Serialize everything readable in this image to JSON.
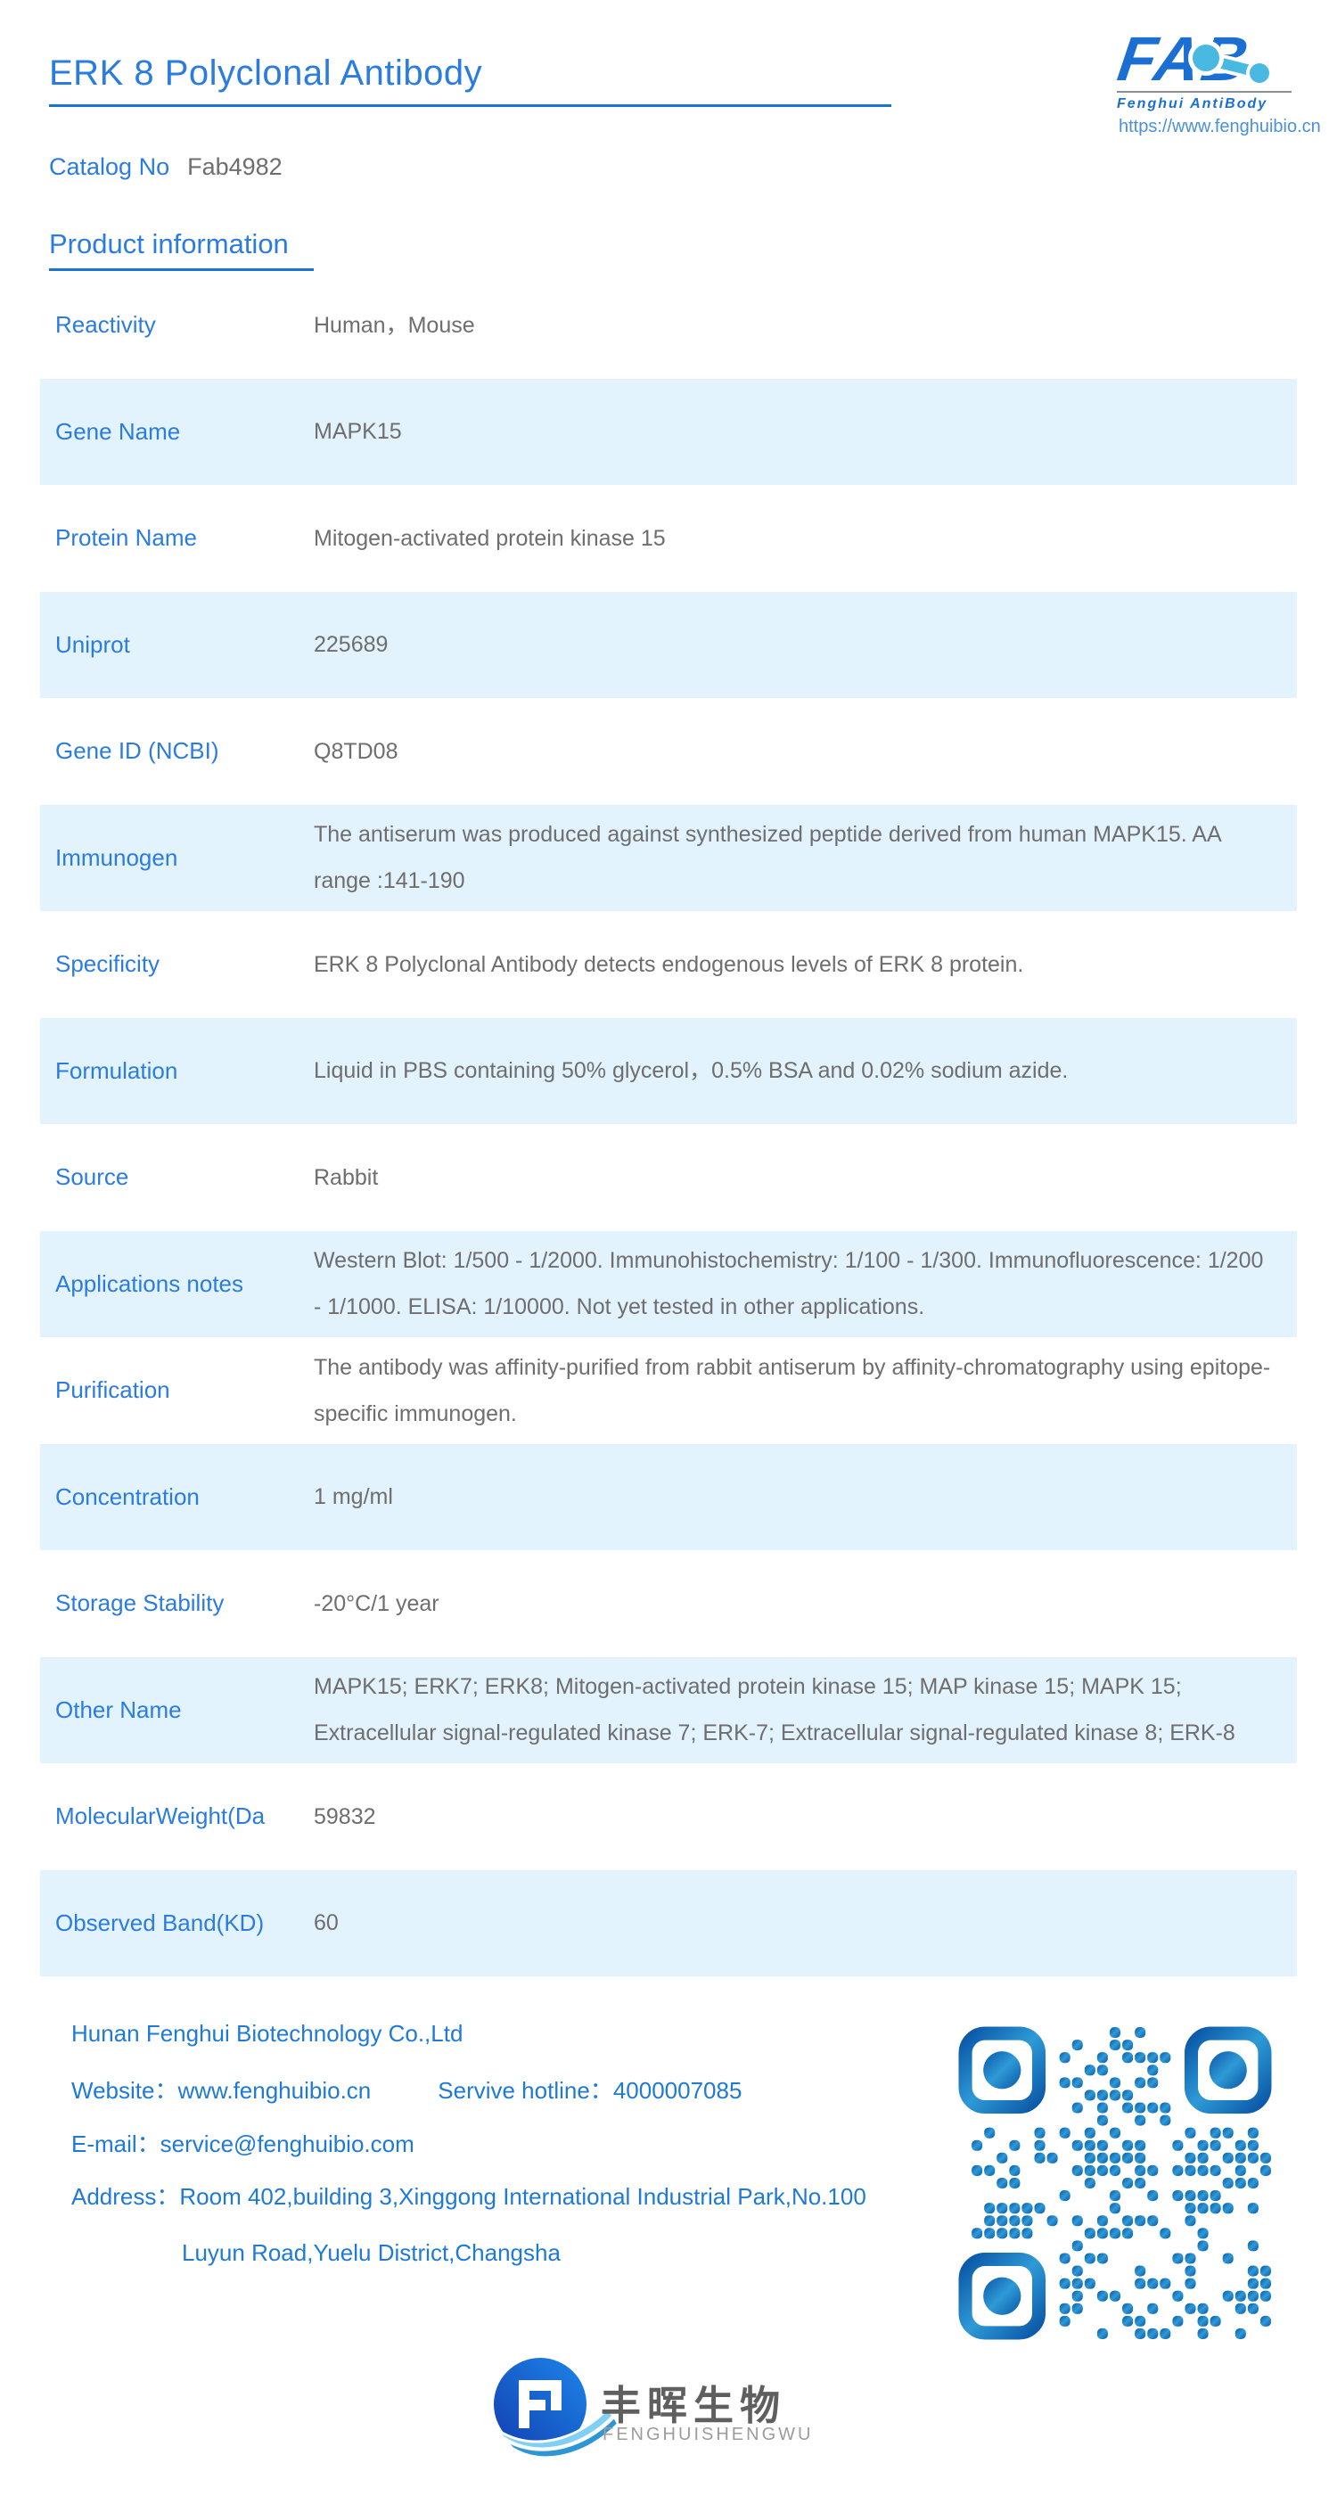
{
  "header": {
    "title": "ERK 8 Polyclonal Antibody",
    "catalog_label": "Catalog No",
    "catalog_value": "Fab4982",
    "section_title": "Product information"
  },
  "logo": {
    "text": "FAB",
    "subtitle": "Fenghui AntiBody",
    "url": "https://www.fenghuibio.cn"
  },
  "table": {
    "rows": [
      {
        "label": "Reactivity",
        "value": "Human，Mouse"
      },
      {
        "label": "Gene Name",
        "value": "MAPK15"
      },
      {
        "label": "Protein Name",
        "value": "Mitogen-activated protein kinase 15"
      },
      {
        "label": "Uniprot",
        "value": "225689"
      },
      {
        "label": "Gene ID (NCBI)",
        "value": "Q8TD08"
      },
      {
        "label": "Immunogen",
        "value": "The antiserum was produced against synthesized peptide derived from human MAPK15. AA range :141-190"
      },
      {
        "label": "Specificity",
        "value": "ERK 8 Polyclonal Antibody detects endogenous levels of ERK 8 protein."
      },
      {
        "label": "Formulation",
        "value": "Liquid in PBS containing 50% glycerol，0.5% BSA and 0.02% sodium azide."
      },
      {
        "label": "Source",
        "value": "Rabbit"
      },
      {
        "label": "Applications notes",
        "value": "Western Blot: 1/500 - 1/2000. Immunohistochemistry: 1/100 - 1/300. Immunofluorescence: 1/200 - 1/1000. ELISA: 1/10000. Not yet tested in other applications."
      },
      {
        "label": "Purification",
        "value": "The antibody was affinity-purified from rabbit antiserum by affinity-chromatography using epitope-specific immunogen."
      },
      {
        "label": "Concentration",
        "value": "1 mg/ml"
      },
      {
        "label": "Storage Stability",
        "value": "-20°C/1 year"
      },
      {
        "label": "Other Name",
        "value": "MAPK15; ERK7; ERK8; Mitogen-activated protein kinase 15; MAP kinase 15; MAPK 15; Extracellular signal-regulated kinase 7; ERK-7; Extracellular signal-regulated kinase 8; ERK-8"
      },
      {
        "label": "MolecularWeight(Da",
        "value": "59832"
      },
      {
        "label": "Observed Band(KD)",
        "value": "60"
      }
    ]
  },
  "footer": {
    "company": "Hunan Fenghui Biotechnology Co.,Ltd",
    "website_label": "Website：",
    "website": "www.fenghuibio.cn",
    "hotline_label": "Servive hotline：",
    "hotline": "4000007085",
    "email_label": "E-mail：",
    "email": "service@fenghuibio.com",
    "address_label": "Address：",
    "address_line1": "Room 402,building 3,Xinggong International Industrial Park,No.100",
    "address_line2": "Luyun Road,Yuelu District,Changsha"
  },
  "bottom_logo": {
    "cn": "丰晖生物",
    "en": "FENGHUISHENGWU"
  },
  "colors": {
    "accent_blue": "#2b7ce0",
    "underline_blue": "#1a73d4",
    "row_alt_bg": "#e3f3fd",
    "value_gray": "#6e6e6e",
    "footer_blue": "#1e7ad6",
    "logo_blue": "#1b6fd3",
    "molecule_cyan": "#49b9e2",
    "qr_dark": "#0a56a7",
    "qr_light": "#2e9ad6"
  }
}
